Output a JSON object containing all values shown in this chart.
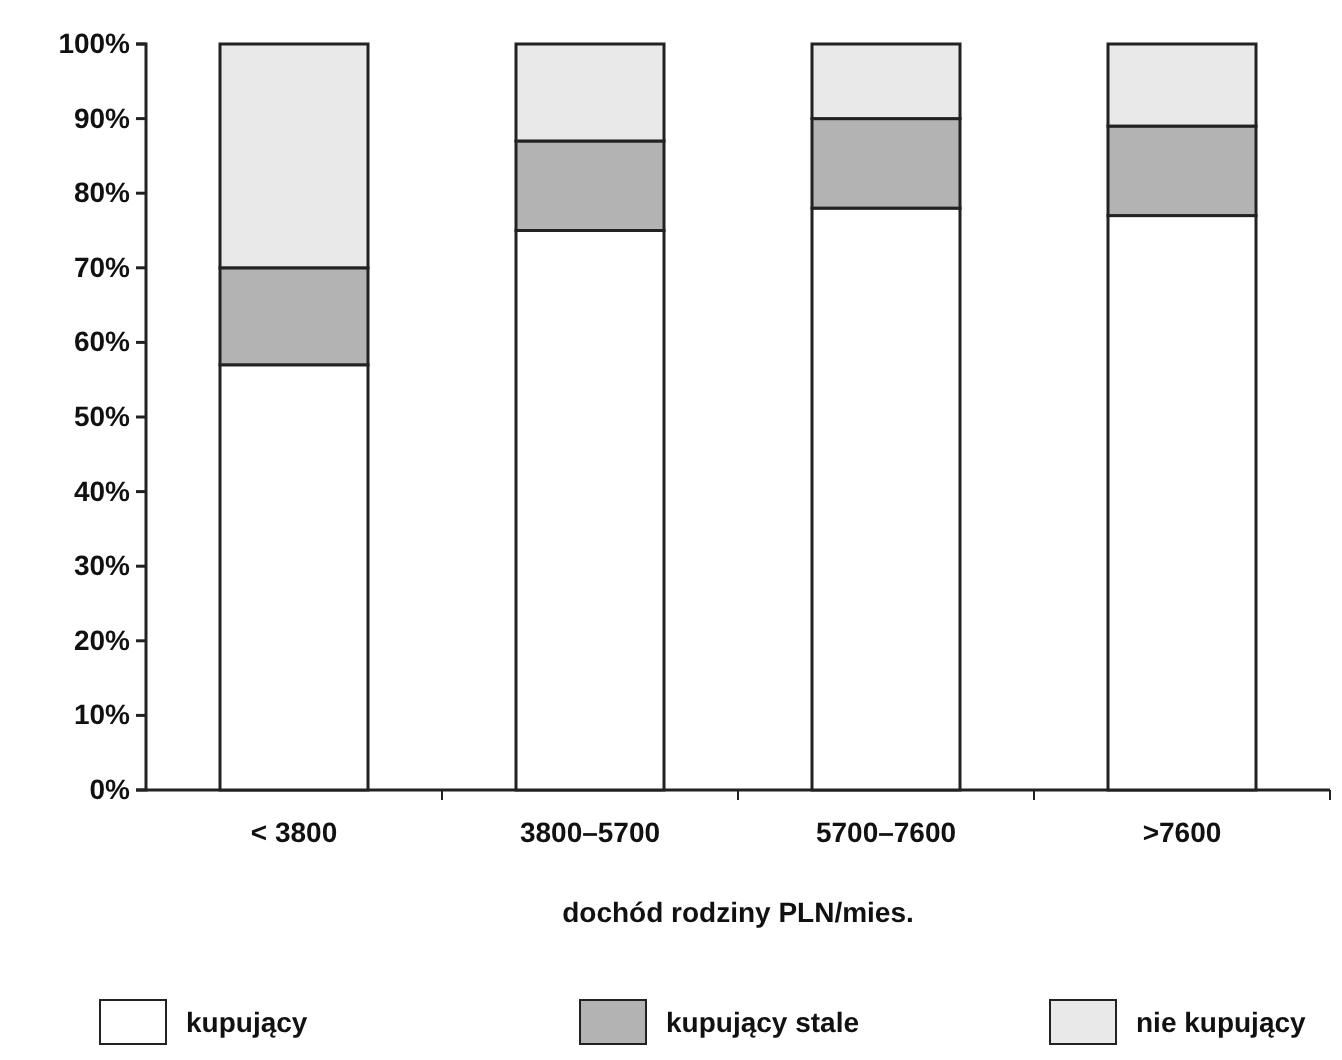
{
  "chart_data": {
    "type": "bar",
    "stacked": true,
    "xlabel": "dochód rodziny PLN/mies.",
    "categories": [
      "< 3800",
      "3800–5700",
      "5700–7600",
      ">7600"
    ],
    "series": [
      {
        "name": "kupujący",
        "color": "#ffffff",
        "values": [
          57,
          75,
          78,
          77
        ]
      },
      {
        "name": "kupujący stale",
        "color": "#b3b3b3",
        "values": [
          13,
          12,
          12,
          12
        ]
      },
      {
        "name": "nie kupujący",
        "color": "#e9e9e9",
        "values": [
          30,
          13,
          10,
          11
        ]
      }
    ],
    "ylim": [
      0,
      100
    ],
    "yticks": [
      {
        "value": 0,
        "label": "0%"
      },
      {
        "value": 10,
        "label": "10%"
      },
      {
        "value": 20,
        "label": "20%"
      },
      {
        "value": 30,
        "label": "30%"
      },
      {
        "value": 40,
        "label": "40%"
      },
      {
        "value": 50,
        "label": "50%"
      },
      {
        "value": 60,
        "label": "60%"
      },
      {
        "value": 70,
        "label": "70%"
      },
      {
        "value": 80,
        "label": "80%"
      },
      {
        "value": 90,
        "label": "90%"
      },
      {
        "value": 100,
        "label": "100%"
      }
    ],
    "legend": "bottom",
    "grid": false
  }
}
